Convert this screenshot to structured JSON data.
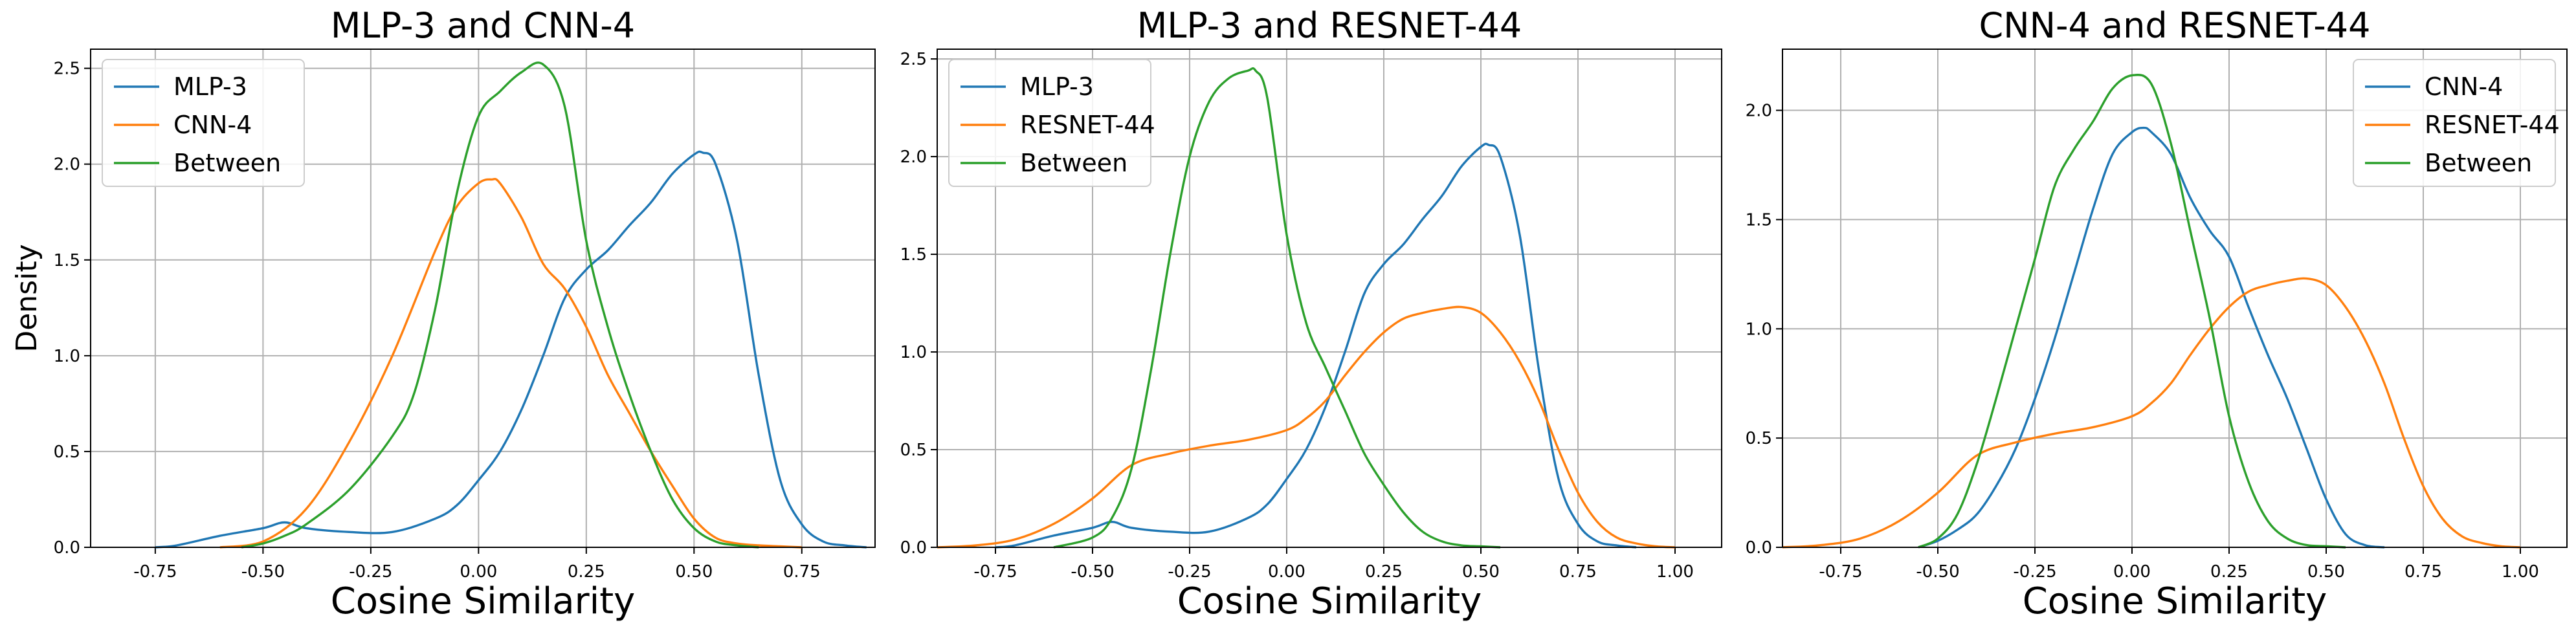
{
  "figure": {
    "ylabel": "Density",
    "xlabel": "Cosine Similarity"
  },
  "chart_data": [
    {
      "type": "line",
      "title": "MLP-3 and CNN-4",
      "xlabel": "Cosine Similarity",
      "ylabel": "Density",
      "xlim": [
        -0.9,
        0.92
      ],
      "ylim": [
        0,
        2.6
      ],
      "xticks": [
        "-0.75",
        "-0.50",
        "-0.25",
        "0.00",
        "0.25",
        "0.50",
        "0.75"
      ],
      "yticks": [
        "0.0",
        "0.5",
        "1.0",
        "1.5",
        "2.0",
        "2.5"
      ],
      "grid": true,
      "legend": "top-left",
      "series": [
        {
          "name": "MLP-3",
          "color": "#1f77b4",
          "x": [
            -0.75,
            -0.7,
            -0.6,
            -0.5,
            -0.45,
            -0.4,
            -0.3,
            -0.2,
            -0.1,
            -0.05,
            0.0,
            0.05,
            0.1,
            0.15,
            0.2,
            0.25,
            0.3,
            0.35,
            0.4,
            0.45,
            0.5,
            0.52,
            0.55,
            0.6,
            0.65,
            0.7,
            0.75,
            0.8,
            0.85,
            0.9
          ],
          "y": [
            0.0,
            0.01,
            0.06,
            0.1,
            0.13,
            0.1,
            0.08,
            0.08,
            0.15,
            0.22,
            0.35,
            0.5,
            0.72,
            1.0,
            1.3,
            1.45,
            1.55,
            1.68,
            1.8,
            1.95,
            2.05,
            2.06,
            2.0,
            1.6,
            0.9,
            0.35,
            0.12,
            0.03,
            0.01,
            0.0
          ]
        },
        {
          "name": "CNN-4",
          "color": "#ff7f0e",
          "x": [
            -0.6,
            -0.5,
            -0.4,
            -0.3,
            -0.2,
            -0.1,
            -0.05,
            0.0,
            0.03,
            0.05,
            0.1,
            0.15,
            0.2,
            0.25,
            0.3,
            0.35,
            0.4,
            0.45,
            0.5,
            0.55,
            0.6,
            0.65,
            0.7,
            0.75
          ],
          "y": [
            0.0,
            0.03,
            0.2,
            0.55,
            1.0,
            1.55,
            1.78,
            1.9,
            1.92,
            1.9,
            1.72,
            1.48,
            1.35,
            1.15,
            0.9,
            0.7,
            0.5,
            0.32,
            0.15,
            0.05,
            0.02,
            0.01,
            0.005,
            0.0
          ]
        },
        {
          "name": "Between",
          "color": "#2ca02c",
          "x": [
            -0.55,
            -0.5,
            -0.45,
            -0.4,
            -0.3,
            -0.2,
            -0.15,
            -0.1,
            -0.05,
            0.0,
            0.05,
            0.1,
            0.15,
            0.2,
            0.25,
            0.3,
            0.35,
            0.4,
            0.45,
            0.5,
            0.55,
            0.6,
            0.65
          ],
          "y": [
            0.0,
            0.02,
            0.06,
            0.12,
            0.3,
            0.58,
            0.8,
            1.25,
            1.85,
            2.25,
            2.38,
            2.48,
            2.52,
            2.3,
            1.6,
            1.15,
            0.8,
            0.5,
            0.25,
            0.1,
            0.03,
            0.01,
            0.0
          ]
        }
      ]
    },
    {
      "type": "line",
      "title": "MLP-3 and RESNET-44",
      "xlabel": "Cosine Similarity",
      "ylabel": "",
      "xlim": [
        -0.9,
        1.12
      ],
      "ylim": [
        0,
        2.55
      ],
      "xticks": [
        "-0.75",
        "-0.50",
        "-0.25",
        "0.00",
        "0.25",
        "0.50",
        "0.75",
        "1.00"
      ],
      "yticks": [
        "0.0",
        "0.5",
        "1.0",
        "1.5",
        "2.0",
        "2.5"
      ],
      "grid": true,
      "legend": "top-left",
      "series": [
        {
          "name": "MLP-3",
          "color": "#1f77b4",
          "x": [
            -0.75,
            -0.7,
            -0.6,
            -0.5,
            -0.45,
            -0.4,
            -0.3,
            -0.2,
            -0.1,
            -0.05,
            0.0,
            0.05,
            0.1,
            0.15,
            0.2,
            0.25,
            0.3,
            0.35,
            0.4,
            0.45,
            0.5,
            0.52,
            0.55,
            0.6,
            0.65,
            0.7,
            0.75,
            0.8,
            0.85,
            0.9
          ],
          "y": [
            0.0,
            0.01,
            0.06,
            0.1,
            0.13,
            0.1,
            0.08,
            0.08,
            0.15,
            0.22,
            0.35,
            0.5,
            0.72,
            1.0,
            1.3,
            1.45,
            1.55,
            1.68,
            1.8,
            1.95,
            2.05,
            2.06,
            2.0,
            1.6,
            0.9,
            0.35,
            0.12,
            0.03,
            0.01,
            0.0
          ]
        },
        {
          "name": "RESNET-44",
          "color": "#ff7f0e",
          "x": [
            -0.9,
            -0.8,
            -0.7,
            -0.6,
            -0.5,
            -0.4,
            -0.3,
            -0.2,
            -0.1,
            0.0,
            0.05,
            0.1,
            0.15,
            0.2,
            0.25,
            0.3,
            0.35,
            0.4,
            0.45,
            0.5,
            0.55,
            0.6,
            0.65,
            0.7,
            0.75,
            0.8,
            0.85,
            0.9,
            0.95,
            1.0
          ],
          "y": [
            0.0,
            0.01,
            0.04,
            0.12,
            0.25,
            0.42,
            0.48,
            0.52,
            0.55,
            0.6,
            0.66,
            0.75,
            0.88,
            1.0,
            1.1,
            1.17,
            1.2,
            1.22,
            1.23,
            1.2,
            1.1,
            0.95,
            0.75,
            0.5,
            0.28,
            0.13,
            0.05,
            0.02,
            0.005,
            0.0
          ]
        },
        {
          "name": "Between",
          "color": "#2ca02c",
          "x": [
            -0.6,
            -0.5,
            -0.45,
            -0.4,
            -0.35,
            -0.3,
            -0.25,
            -0.2,
            -0.15,
            -0.1,
            -0.08,
            -0.05,
            0.0,
            0.05,
            0.1,
            0.15,
            0.2,
            0.25,
            0.3,
            0.35,
            0.4,
            0.45,
            0.5,
            0.55
          ],
          "y": [
            0.0,
            0.05,
            0.15,
            0.4,
            0.9,
            1.5,
            2.0,
            2.28,
            2.4,
            2.44,
            2.44,
            2.3,
            1.6,
            1.15,
            0.92,
            0.7,
            0.48,
            0.32,
            0.18,
            0.08,
            0.03,
            0.01,
            0.005,
            0.0
          ]
        }
      ]
    },
    {
      "type": "line",
      "title": "CNN-4 and RESNET-44",
      "xlabel": "Cosine Similarity",
      "ylabel": "",
      "xlim": [
        -0.9,
        1.12
      ],
      "ylim": [
        0,
        2.28
      ],
      "xticks": [
        "-0.75",
        "-0.50",
        "-0.25",
        "0.00",
        "0.25",
        "0.50",
        "0.75",
        "1.00"
      ],
      "yticks": [
        "0.0",
        "0.5",
        "1.0",
        "1.5",
        "2.0"
      ],
      "grid": true,
      "legend": "top-right",
      "series": [
        {
          "name": "CNN-4",
          "color": "#1f77b4",
          "x": [
            -0.55,
            -0.5,
            -0.45,
            -0.4,
            -0.35,
            -0.3,
            -0.25,
            -0.2,
            -0.15,
            -0.1,
            -0.05,
            0.0,
            0.03,
            0.05,
            0.1,
            0.15,
            0.2,
            0.25,
            0.3,
            0.35,
            0.4,
            0.45,
            0.5,
            0.55,
            0.6,
            0.65
          ],
          "y": [
            0.0,
            0.03,
            0.08,
            0.15,
            0.28,
            0.45,
            0.68,
            0.95,
            1.25,
            1.55,
            1.8,
            1.9,
            1.92,
            1.9,
            1.8,
            1.6,
            1.45,
            1.33,
            1.1,
            0.88,
            0.68,
            0.45,
            0.22,
            0.06,
            0.01,
            0.0
          ]
        },
        {
          "name": "RESNET-44",
          "color": "#ff7f0e",
          "x": [
            -0.9,
            -0.8,
            -0.7,
            -0.6,
            -0.5,
            -0.4,
            -0.3,
            -0.2,
            -0.1,
            0.0,
            0.05,
            0.1,
            0.15,
            0.2,
            0.25,
            0.3,
            0.35,
            0.4,
            0.45,
            0.5,
            0.55,
            0.6,
            0.65,
            0.7,
            0.75,
            0.8,
            0.85,
            0.9,
            0.95,
            1.0
          ],
          "y": [
            0.0,
            0.01,
            0.04,
            0.12,
            0.25,
            0.42,
            0.48,
            0.52,
            0.55,
            0.6,
            0.66,
            0.75,
            0.88,
            1.0,
            1.1,
            1.17,
            1.2,
            1.22,
            1.23,
            1.2,
            1.1,
            0.95,
            0.75,
            0.5,
            0.28,
            0.13,
            0.05,
            0.02,
            0.005,
            0.0
          ]
        },
        {
          "name": "Between",
          "color": "#2ca02c",
          "x": [
            -0.55,
            -0.5,
            -0.45,
            -0.4,
            -0.35,
            -0.3,
            -0.25,
            -0.2,
            -0.15,
            -0.1,
            -0.05,
            0.0,
            0.05,
            0.1,
            0.15,
            0.2,
            0.25,
            0.3,
            0.35,
            0.4,
            0.45,
            0.5,
            0.55
          ],
          "y": [
            0.0,
            0.04,
            0.15,
            0.38,
            0.68,
            1.0,
            1.32,
            1.65,
            1.82,
            1.95,
            2.1,
            2.16,
            2.12,
            1.85,
            1.45,
            1.05,
            0.6,
            0.3,
            0.12,
            0.04,
            0.01,
            0.005,
            0.0
          ]
        }
      ]
    }
  ]
}
